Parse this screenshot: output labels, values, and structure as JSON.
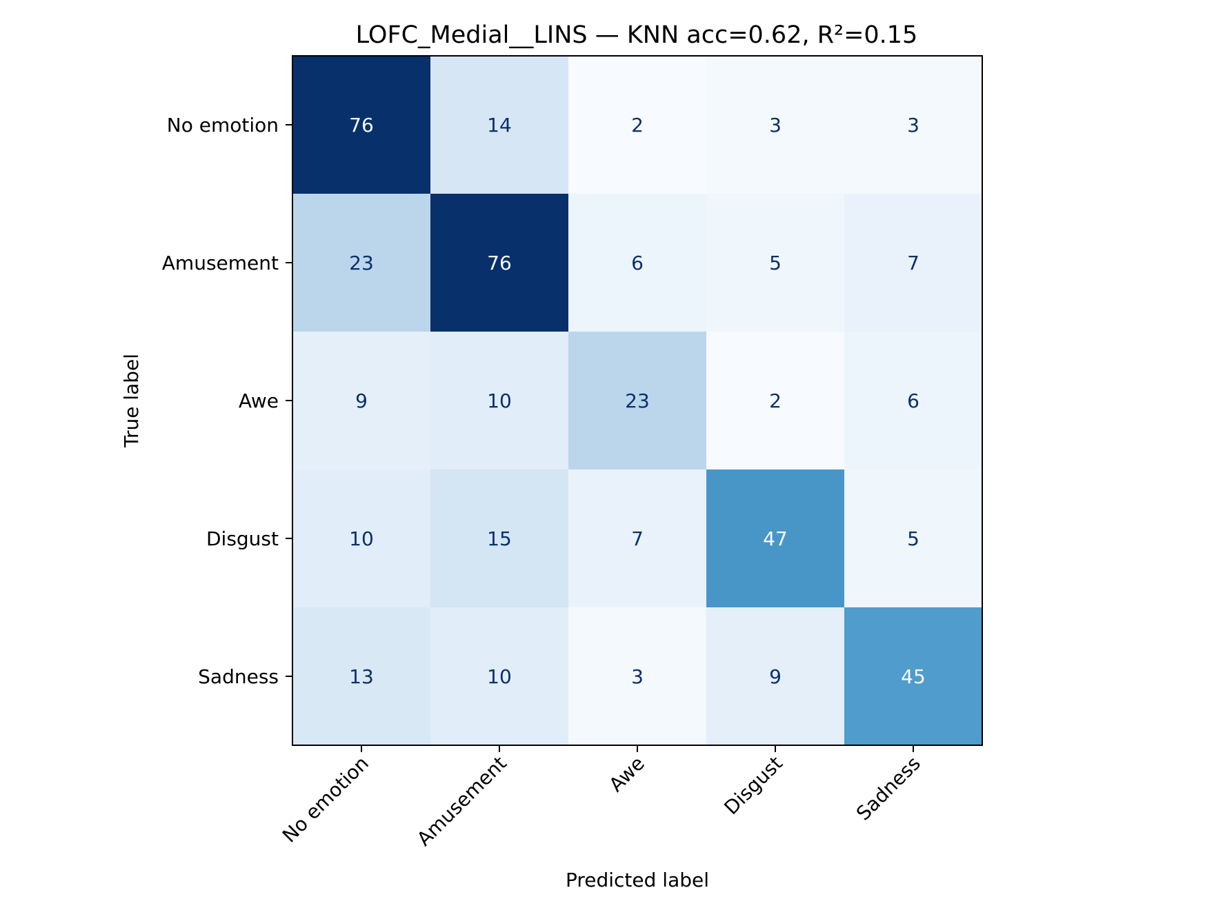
{
  "chart_data": {
    "type": "heatmap",
    "title": "LOFC_Medial__LINS — KNN acc=0.62, R²=0.15",
    "xlabel": "Predicted label",
    "ylabel": "True label",
    "x_categories": [
      "No emotion",
      "Amusement",
      "Awe",
      "Disgust",
      "Sadness"
    ],
    "y_categories": [
      "No emotion",
      "Amusement",
      "Awe",
      "Disgust",
      "Sadness"
    ],
    "values": [
      [
        76,
        14,
        2,
        3,
        3
      ],
      [
        23,
        76,
        6,
        5,
        7
      ],
      [
        9,
        10,
        23,
        2,
        6
      ],
      [
        10,
        15,
        7,
        47,
        5
      ],
      [
        13,
        10,
        3,
        9,
        45
      ]
    ],
    "colormap": "Blues",
    "color_range": [
      2,
      76
    ],
    "grid": false,
    "colorbar": false
  }
}
